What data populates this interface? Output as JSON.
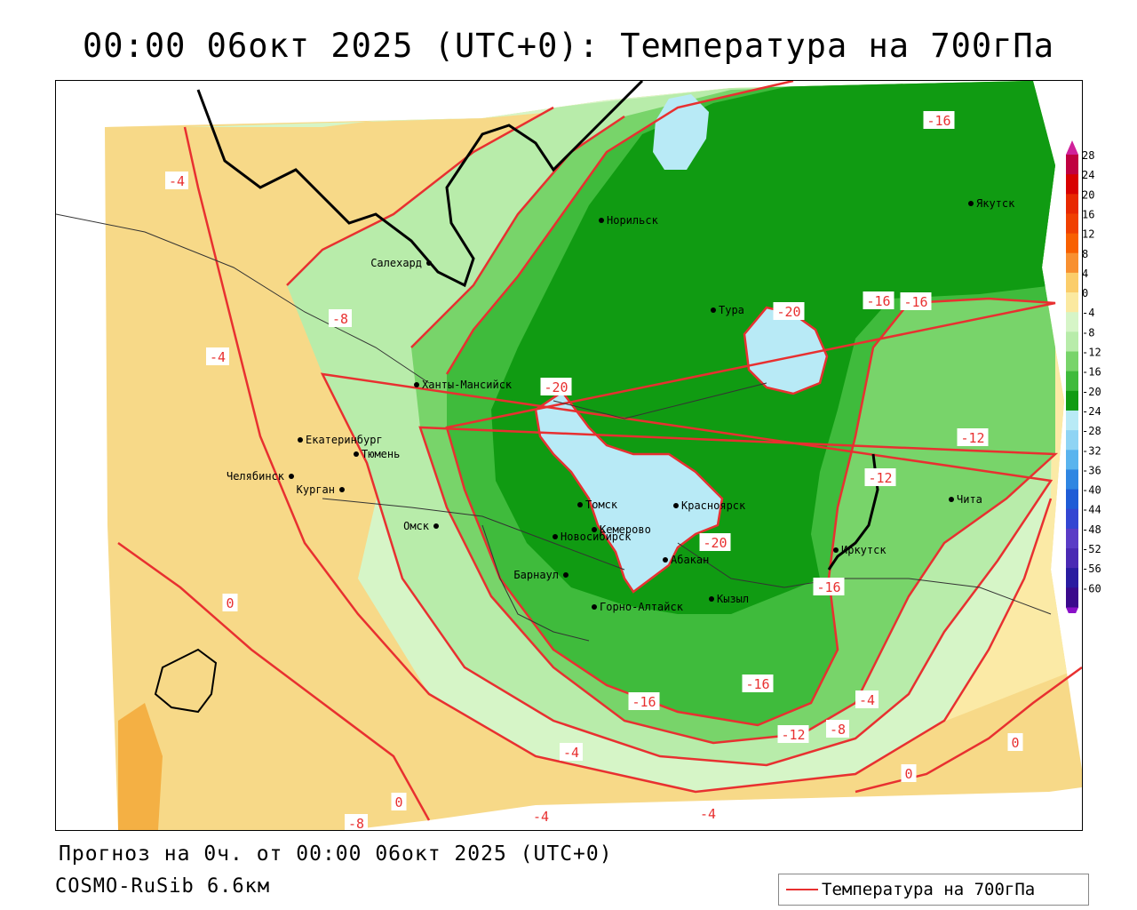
{
  "title": "00:00 06окт 2025 (UTC+0): Температура на 700гПа",
  "footer": {
    "forecast": "Прогноз на 0ч. от 00:00 06окт 2025 (UTC+0)",
    "model": "COSMO-RuSib 6.6км"
  },
  "legend": {
    "label": "Температура на 700гПа",
    "color": "#e83030"
  },
  "colors": {
    "zone_warm_dark": "#f4b044",
    "zone_warm": "#f7d988",
    "zone_pale_yellow": "#fbeaa6",
    "zone_m4": "#d6f5c7",
    "zone_m8": "#b8ecaa",
    "zone_m12": "#78d46a",
    "zone_m16": "#3fbb3c",
    "zone_m20": "#109b12",
    "zone_m24": "#b8eaf6",
    "isotherm": "#e83030"
  },
  "cities": [
    {
      "name": "Норильск"
    },
    {
      "name": "Якутск"
    },
    {
      "name": "Салехард"
    },
    {
      "name": "Тура"
    },
    {
      "name": "Ханты-Мансийск"
    },
    {
      "name": "Екатеринбург"
    },
    {
      "name": "Тюмень"
    },
    {
      "name": "Челябинск"
    },
    {
      "name": "Курган"
    },
    {
      "name": "Омск"
    },
    {
      "name": "Новосибирск"
    },
    {
      "name": "Томск"
    },
    {
      "name": "Кемерово"
    },
    {
      "name": "Красноярск"
    },
    {
      "name": "Барнаул"
    },
    {
      "name": "Абакан"
    },
    {
      "name": "Горно-Алтайск"
    },
    {
      "name": "Кызыл"
    },
    {
      "name": "Иркутск"
    },
    {
      "name": "Чита"
    }
  ],
  "isotherm_labels": [
    "-16",
    "-16",
    "-4",
    "-8",
    "-4",
    "-20",
    "-20",
    "-16",
    "-12",
    "-12",
    "-20",
    "-16",
    "-16",
    "-16",
    "-12",
    "-8",
    "-4",
    "-4",
    "0",
    "0",
    "0",
    "0",
    "-8",
    "-4",
    "-4"
  ],
  "scale": {
    "values": [
      "28",
      "24",
      "20",
      "16",
      "12",
      "8",
      "4",
      "0",
      "-4",
      "-8",
      "-12",
      "-16",
      "-20",
      "-24",
      "-28",
      "-32",
      "-36",
      "-40",
      "-44",
      "-48",
      "-52",
      "-56",
      "-60"
    ],
    "colors": [
      "#c00040",
      "#d80000",
      "#e82800",
      "#f04000",
      "#f86000",
      "#f89030",
      "#fbcd6a",
      "#fbe9a0",
      "#d6f5c7",
      "#b8ecaa",
      "#78d46a",
      "#3fbb3c",
      "#109b12",
      "#b8eaf6",
      "#8fd4f4",
      "#5ab4ee",
      "#2f86e2",
      "#1e5cd6",
      "#3346d2",
      "#5a3cc6",
      "#4a2ab4",
      "#2a1ca0",
      "#3a0a8c"
    ],
    "top_arrow_color": "#d0209a",
    "bottom_arrow_color": "#8a10c8"
  }
}
